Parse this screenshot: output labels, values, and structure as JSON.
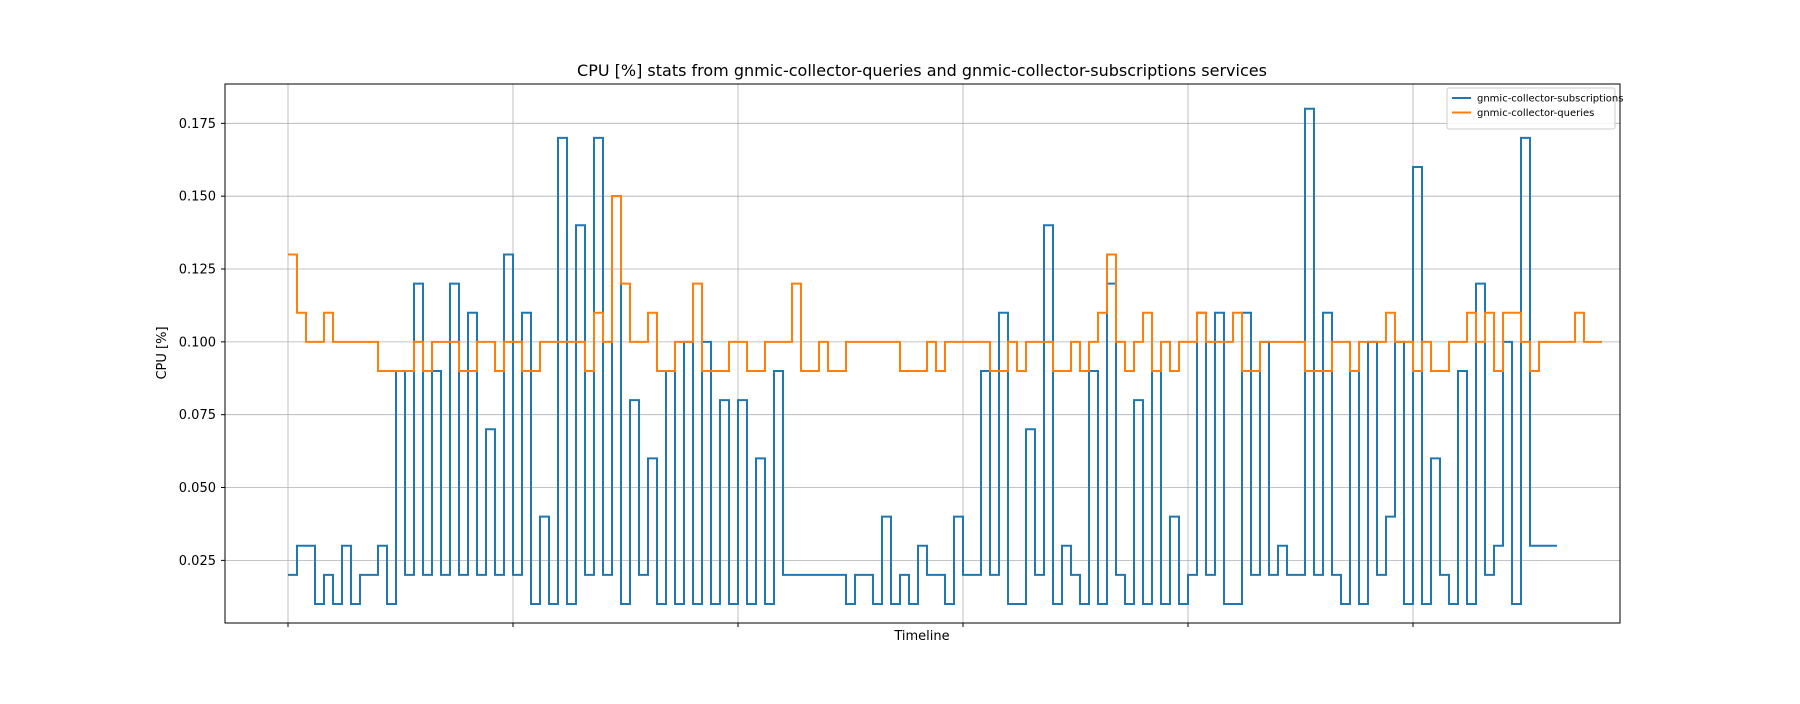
{
  "chart_data": {
    "type": "line",
    "step": "post",
    "title": "CPU [%] stats from gnmic-collector-queries and gnmic-collector-subscriptions services",
    "xlabel": "Timeline",
    "ylabel": "CPU [%]",
    "xlim": [
      -7,
      148
    ],
    "ylim": [
      0.0035,
      0.1885
    ],
    "x_tick_positions": [
      0,
      25,
      50,
      75,
      100,
      125
    ],
    "x_tick_labels": [
      "",
      "",
      "",
      "",
      "",
      ""
    ],
    "y_ticks": [
      0.025,
      0.05,
      0.075,
      0.1,
      0.125,
      0.15,
      0.175
    ],
    "y_tick_labels": [
      "0.025",
      "0.050",
      "0.075",
      "0.100",
      "0.125",
      "0.150",
      "0.175"
    ],
    "grid": true,
    "legend_position": "top-right",
    "series": [
      {
        "name": "gnmic-collector-subscriptions",
        "color": "#1f77b4",
        "values": [
          0.02,
          0.03,
          0.03,
          0.01,
          0.02,
          0.01,
          0.03,
          0.01,
          0.02,
          0.02,
          0.03,
          0.01,
          0.09,
          0.02,
          0.12,
          0.02,
          0.09,
          0.02,
          0.12,
          0.02,
          0.11,
          0.02,
          0.07,
          0.02,
          0.13,
          0.02,
          0.11,
          0.01,
          0.04,
          0.01,
          0.17,
          0.01,
          0.14,
          0.02,
          0.17,
          0.02,
          0.15,
          0.01,
          0.08,
          0.02,
          0.06,
          0.01,
          0.09,
          0.01,
          0.1,
          0.01,
          0.1,
          0.01,
          0.08,
          0.01,
          0.08,
          0.01,
          0.06,
          0.01,
          0.09,
          0.02,
          0.02,
          0.02,
          0.02,
          0.02,
          0.02,
          0.02,
          0.01,
          0.02,
          0.02,
          0.01,
          0.04,
          0.01,
          0.02,
          0.01,
          0.03,
          0.02,
          0.02,
          0.01,
          0.04,
          0.02,
          0.02,
          0.09,
          0.02,
          0.11,
          0.01,
          0.01,
          0.07,
          0.02,
          0.14,
          0.01,
          0.03,
          0.02,
          0.01,
          0.09,
          0.01,
          0.12,
          0.02,
          0.01,
          0.08,
          0.01,
          0.09,
          0.01,
          0.04,
          0.01,
          0.02,
          0.11,
          0.02,
          0.11,
          0.01,
          0.01,
          0.11,
          0.02,
          0.1,
          0.02,
          0.03,
          0.02,
          0.02,
          0.18,
          0.02,
          0.11,
          0.02,
          0.01,
          0.09,
          0.01,
          0.1,
          0.02,
          0.04,
          0.1,
          0.01,
          0.16,
          0.01,
          0.06,
          0.02,
          0.01,
          0.09,
          0.01,
          0.12,
          0.02,
          0.03,
          0.1,
          0.01,
          0.17,
          0.03,
          0.03,
          0.03
        ]
      },
      {
        "name": "gnmic-collector-queries",
        "color": "#ff7f0e",
        "values": [
          0.13,
          0.11,
          0.1,
          0.1,
          0.11,
          0.1,
          0.1,
          0.1,
          0.1,
          0.1,
          0.09,
          0.09,
          0.09,
          0.09,
          0.1,
          0.09,
          0.1,
          0.1,
          0.1,
          0.09,
          0.09,
          0.1,
          0.1,
          0.09,
          0.1,
          0.1,
          0.09,
          0.09,
          0.1,
          0.1,
          0.1,
          0.1,
          0.1,
          0.09,
          0.11,
          0.1,
          0.15,
          0.12,
          0.1,
          0.1,
          0.11,
          0.09,
          0.09,
          0.1,
          0.1,
          0.12,
          0.09,
          0.09,
          0.09,
          0.1,
          0.1,
          0.09,
          0.09,
          0.1,
          0.1,
          0.1,
          0.12,
          0.09,
          0.09,
          0.1,
          0.09,
          0.09,
          0.1,
          0.1,
          0.1,
          0.1,
          0.1,
          0.1,
          0.09,
          0.09,
          0.09,
          0.1,
          0.09,
          0.1,
          0.1,
          0.1,
          0.1,
          0.1,
          0.09,
          0.09,
          0.1,
          0.09,
          0.1,
          0.1,
          0.1,
          0.09,
          0.09,
          0.1,
          0.09,
          0.1,
          0.11,
          0.13,
          0.1,
          0.09,
          0.1,
          0.11,
          0.09,
          0.1,
          0.09,
          0.1,
          0.1,
          0.11,
          0.1,
          0.1,
          0.1,
          0.11,
          0.09,
          0.09,
          0.1,
          0.1,
          0.1,
          0.1,
          0.1,
          0.09,
          0.09,
          0.09,
          0.1,
          0.1,
          0.09,
          0.1,
          0.1,
          0.1,
          0.11,
          0.1,
          0.1,
          0.09,
          0.1,
          0.09,
          0.09,
          0.1,
          0.1,
          0.11,
          0.1,
          0.11,
          0.09,
          0.11,
          0.11,
          0.1,
          0.09,
          0.1,
          0.1,
          0.1,
          0.1,
          0.11,
          0.1,
          0.1
        ]
      }
    ]
  }
}
